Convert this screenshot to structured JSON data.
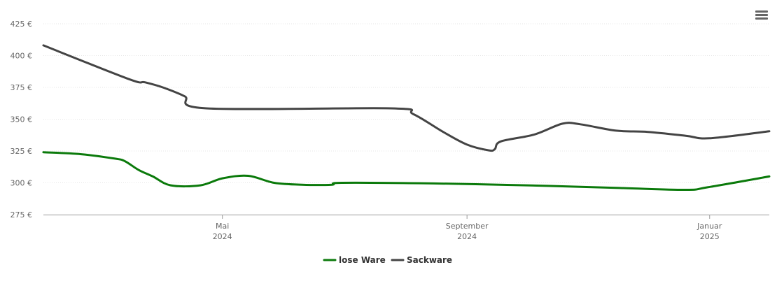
{
  "menu": {
    "icon": "hamburger-menu-icon"
  },
  "chart_data": {
    "type": "line",
    "title": "",
    "xlabel": "",
    "ylabel": "",
    "y_unit": "€",
    "ylim": [
      275,
      425
    ],
    "y_ticks": [
      "425 €",
      "400 €",
      "375 €",
      "350 €",
      "325 €",
      "300 €",
      "275 €"
    ],
    "y_tick_values": [
      425,
      400,
      375,
      350,
      325,
      300,
      275
    ],
    "x_range": [
      "2024-02-01",
      "2025-01-31"
    ],
    "x_ticks": [
      {
        "date": "2024-05-01",
        "line1": "Mai",
        "line2": "2024"
      },
      {
        "date": "2024-09-01",
        "line1": "September",
        "line2": "2024"
      },
      {
        "date": "2025-01-01",
        "line1": "Januar",
        "line2": "2025"
      }
    ],
    "grid": true,
    "legend": "bottom-center",
    "series": [
      {
        "name": "lose Ware",
        "color": "#0b7a0b",
        "points": [
          [
            "2024-02-01",
            324
          ],
          [
            "2024-02-20",
            322.5
          ],
          [
            "2024-03-08",
            319
          ],
          [
            "2024-03-13",
            317
          ],
          [
            "2024-03-20",
            310
          ],
          [
            "2024-03-27",
            305
          ],
          [
            "2024-04-05",
            298
          ],
          [
            "2024-04-20",
            298
          ],
          [
            "2024-05-01",
            303.5
          ],
          [
            "2024-05-14",
            305.5
          ],
          [
            "2024-05-27",
            300
          ],
          [
            "2024-06-10",
            298.5
          ],
          [
            "2024-06-25",
            298.5
          ],
          [
            "2024-06-30",
            300
          ],
          [
            "2024-08-15",
            299.5
          ],
          [
            "2024-10-01",
            298
          ],
          [
            "2024-11-15",
            296
          ],
          [
            "2024-12-20",
            294.5
          ],
          [
            "2024-12-31",
            296.5
          ],
          [
            "2025-01-31",
            305
          ]
        ]
      },
      {
        "name": "Sackware",
        "color": "#444444",
        "points": [
          [
            "2024-02-01",
            408
          ],
          [
            "2024-03-15",
            381.5
          ],
          [
            "2024-03-23",
            379
          ],
          [
            "2024-04-01",
            375
          ],
          [
            "2024-04-12",
            368
          ],
          [
            "2024-04-23",
            358.5
          ],
          [
            "2024-07-25",
            358.5
          ],
          [
            "2024-08-05",
            354
          ],
          [
            "2024-08-20",
            340
          ],
          [
            "2024-09-01",
            330
          ],
          [
            "2024-09-12",
            325.5
          ],
          [
            "2024-09-15",
            326.5
          ],
          [
            "2024-09-18",
            332.5
          ],
          [
            "2024-10-05",
            338
          ],
          [
            "2024-10-19",
            346.5
          ],
          [
            "2024-10-28",
            346
          ],
          [
            "2024-11-15",
            341
          ],
          [
            "2024-12-01",
            340
          ],
          [
            "2024-12-20",
            337
          ],
          [
            "2025-01-01",
            335
          ],
          [
            "2025-01-31",
            340.5
          ]
        ]
      }
    ]
  }
}
